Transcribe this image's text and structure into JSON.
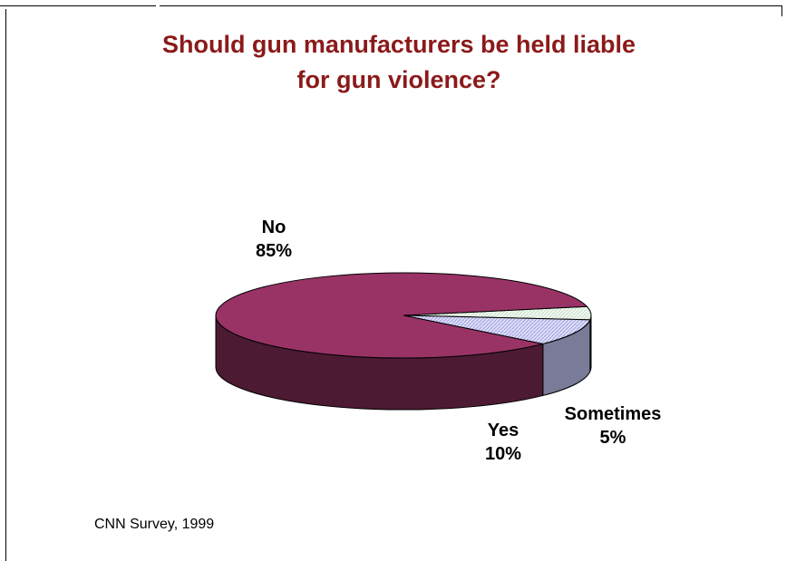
{
  "chart_data": {
    "type": "pie",
    "title": "Should gun manufacturers be held liable for gun violence?",
    "title_lines": [
      "Should gun manufacturers be held liable",
      "for gun violence?"
    ],
    "style": "3d",
    "slices": [
      {
        "label": "No",
        "value": 85,
        "value_text": "85%",
        "color": "#993366",
        "side_color": "#4d1a33"
      },
      {
        "label": "Yes",
        "value": 10,
        "value_text": "10%",
        "color": "#ccccff",
        "side_color": "#7a7a99"
      },
      {
        "label": "Sometimes",
        "value": 5,
        "value_text": "5%",
        "color": "#e6f5e6",
        "side_color": "#6b7a6b"
      }
    ],
    "source": "CNN Survey, 1999"
  }
}
